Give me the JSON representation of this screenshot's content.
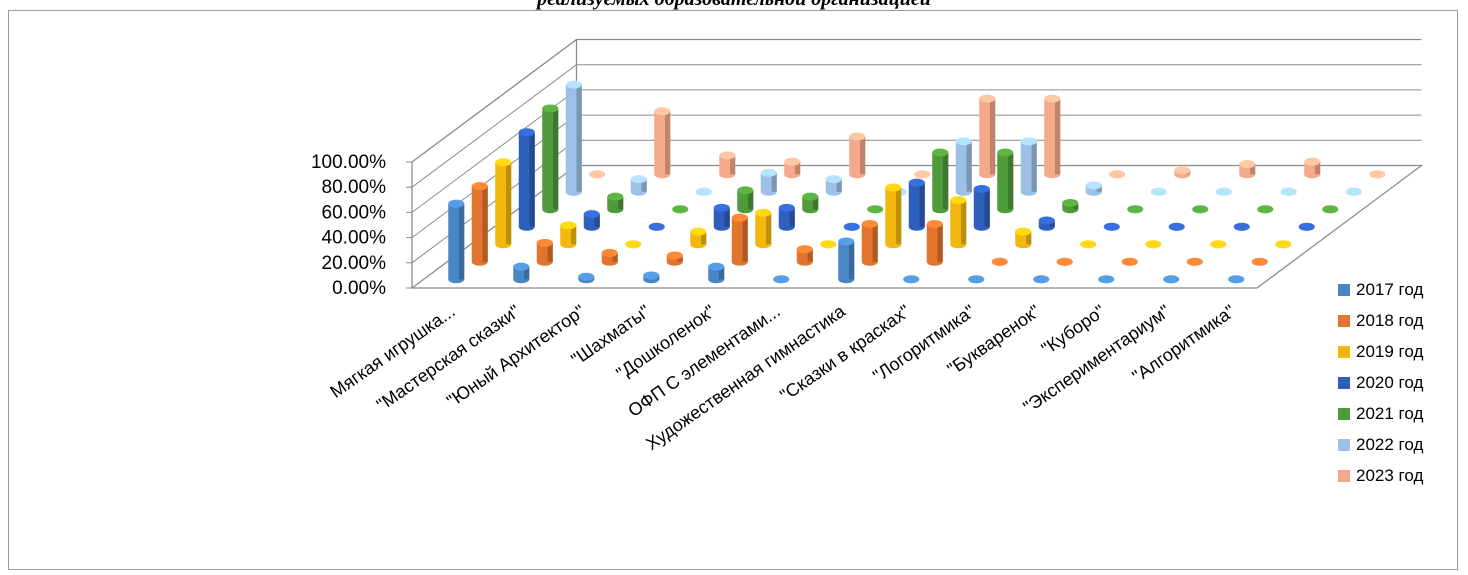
{
  "chart_data": {
    "type": "bar",
    "title": "реализуемых образовательной организацией",
    "categories": [
      "Мягкая игрушка...",
      "\"Мастерская сказки\"",
      "\"Юный Архитектор\"",
      "\"Шахматы\"",
      "\"Дошколенок\"",
      "ОФП С элементами...",
      "Художественная гимнастика",
      "\"Сказки в красках\"",
      "\"Логоритмика\"",
      "\"Букваренок\"",
      "\"Куборо\"",
      "\"Экспериментариум\"",
      "\"Алгоритмика\""
    ],
    "y_ticks": [
      "0.00%",
      "20.00%",
      "40.00%",
      "60.00%",
      "80.00%",
      "100.00%"
    ],
    "ylim": [
      0,
      1
    ],
    "series": [
      {
        "name": "2017 год",
        "color": "#4a86c5",
        "values": [
          0.6,
          0.1,
          0.02,
          0.03,
          0.1,
          0.0,
          0.3,
          0.0,
          0.0,
          0,
          0,
          0,
          0
        ]
      },
      {
        "name": "2018 год",
        "color": "#e1752e",
        "values": [
          0.6,
          0.15,
          0.07,
          0.05,
          0.35,
          0.1,
          0.3,
          0.3,
          0.0,
          0,
          0,
          0,
          0
        ]
      },
      {
        "name": "2019 год",
        "color": "#f2b80e",
        "values": [
          0.65,
          0.15,
          0.0,
          0.1,
          0.25,
          0.0,
          0.45,
          0.35,
          0.1,
          0,
          0,
          0,
          0
        ]
      },
      {
        "name": "2020 год",
        "color": "#2f5fbc",
        "values": [
          0.75,
          0.1,
          0.0,
          0.15,
          0.15,
          0.0,
          0.35,
          0.3,
          0.05,
          0,
          0,
          0,
          0
        ]
      },
      {
        "name": "2021 год",
        "color": "#4f9a3a",
        "values": [
          0.8,
          0.1,
          0.0,
          0.15,
          0.1,
          0.0,
          0.45,
          0.45,
          0.05,
          0,
          0,
          0,
          0
        ]
      },
      {
        "name": "2022 год",
        "color": "#9cc0e6",
        "values": [
          0.85,
          0.1,
          0.0,
          0.15,
          0.1,
          0.0,
          0.4,
          0.4,
          0.05,
          0,
          0,
          0,
          0
        ]
      },
      {
        "name": "2023 год",
        "color": "#f4a98a",
        "values": [
          0.0,
          0.5,
          0.15,
          0.1,
          0.3,
          0.0,
          0.6,
          0.6,
          0.0,
          0.03,
          0.08,
          0.1,
          0
        ]
      }
    ],
    "legend_position": "right",
    "grid": true
  }
}
